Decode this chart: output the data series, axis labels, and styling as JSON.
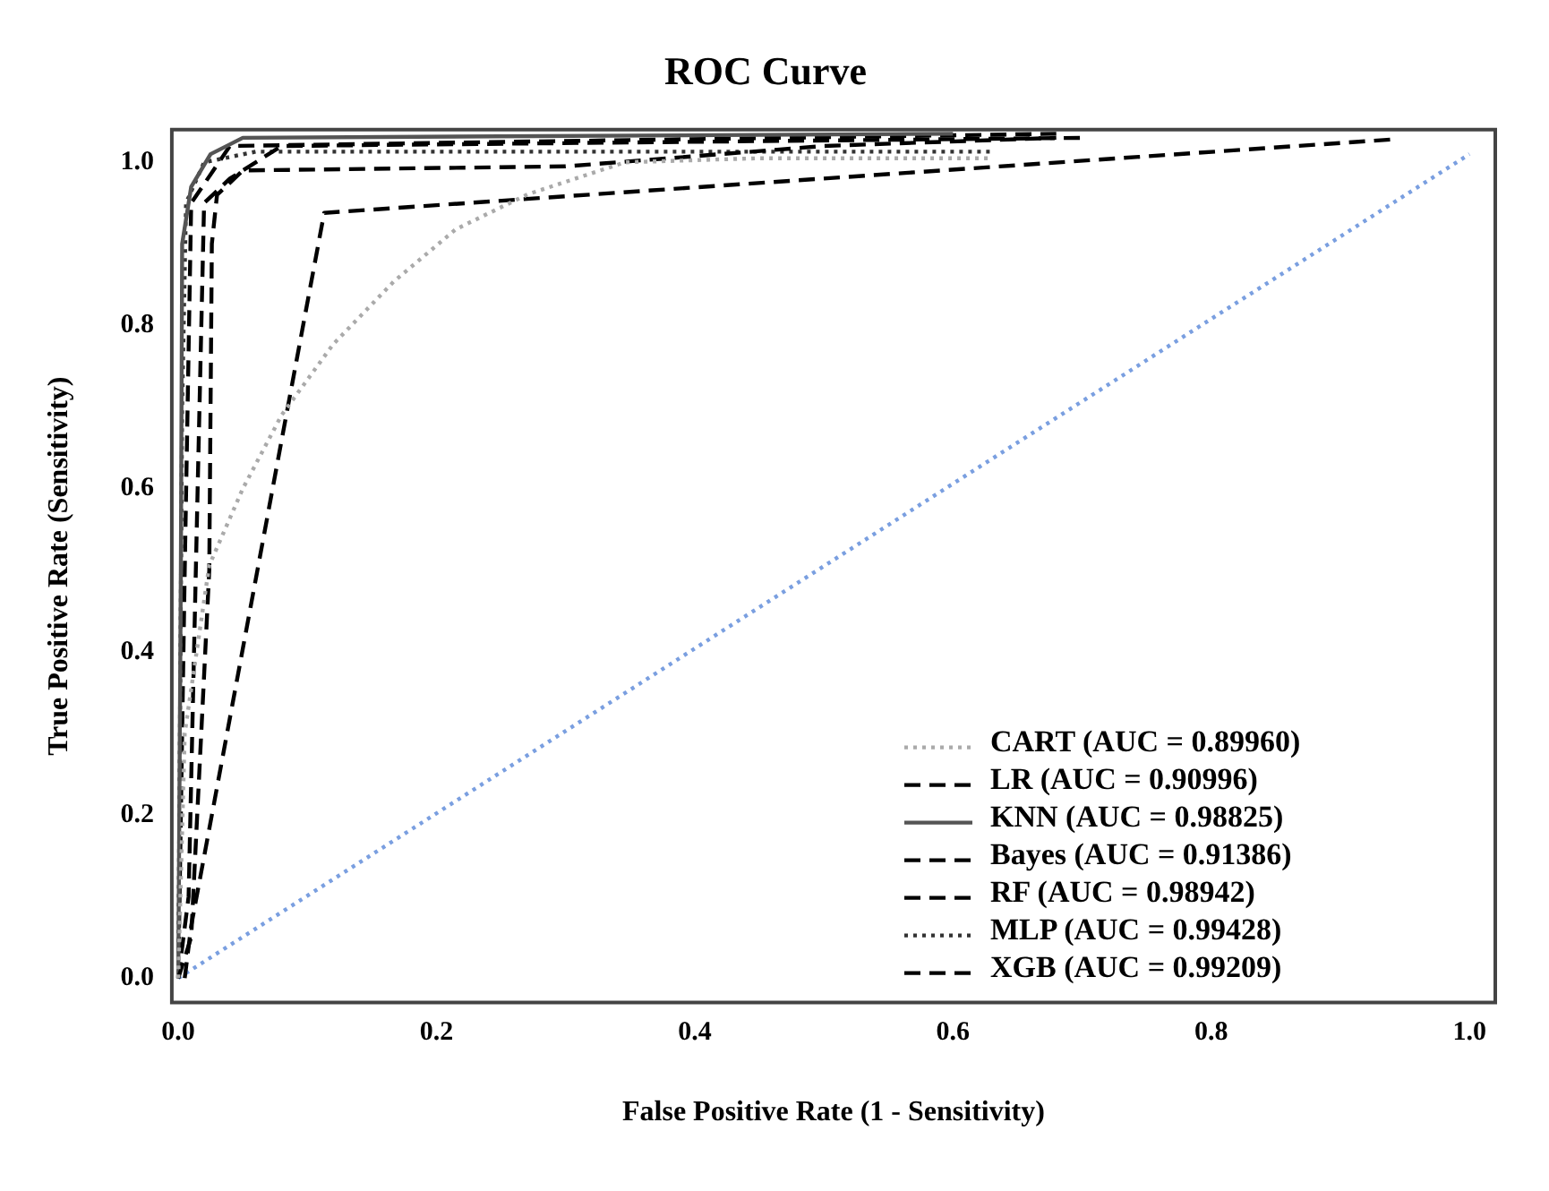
{
  "chart_data": {
    "type": "line",
    "title": "ROC Curve",
    "xlabel": "False Positive Rate (1 - Sensitivity)",
    "ylabel": "True Positive Rate (Sensitivity)",
    "xlim": [
      -0.005,
      1.02
    ],
    "ylim": [
      -0.03,
      1.04
    ],
    "xticks": [
      {
        "value": 0,
        "label": "0.0"
      },
      {
        "value": 0.2,
        "label": "0.2"
      },
      {
        "value": 0.4,
        "label": "0.4"
      },
      {
        "value": 0.6,
        "label": "0.6"
      },
      {
        "value": 0.8,
        "label": "0.8"
      },
      {
        "value": 1,
        "label": "1.0"
      }
    ],
    "yticks": [
      {
        "value": 0,
        "label": "0.0"
      },
      {
        "value": 0.2,
        "label": "0.2"
      },
      {
        "value": 0.4,
        "label": "0.4"
      },
      {
        "value": 0.6,
        "label": "0.6"
      },
      {
        "value": 0.8,
        "label": "0.8"
      },
      {
        "value": 1,
        "label": "1.0"
      }
    ],
    "grid": false,
    "legend": "bottom right",
    "marker": "none",
    "series": [
      {
        "name": "CART (AUC = 0.89960)",
        "color": "#aaaaaa",
        "line_style": "dotted",
        "x": [
          0,
          0.005,
          0.024,
          0.05,
          0.08,
          0.12,
          0.167,
          0.215,
          0.271,
          0.346,
          0.45,
          0.63
        ],
        "values": [
          0,
          0.3,
          0.506,
          0.6,
          0.69,
          0.777,
          0.854,
          0.918,
          0.961,
          1.0,
          1.005,
          1.005
        ]
      },
      {
        "name": "LR (AUC = 0.90996)",
        "color": "#000000",
        "line_style": "dashed",
        "x": [
          0,
          0.01,
          0.024,
          0.026,
          0.03,
          0.05,
          0.3,
          0.5,
          0.68
        ],
        "values": [
          0,
          0.05,
          0.5,
          0.9,
          0.96,
          0.99,
          0.995,
          1.02,
          1.03
        ]
      },
      {
        "name": "KNN (AUC = 0.98825)",
        "color": "#555555",
        "line_style": "solid",
        "x": [
          0,
          0.002,
          0.003,
          0.01,
          0.025,
          0.05,
          0.6
        ],
        "values": [
          0,
          0.5,
          0.9,
          0.97,
          1.01,
          1.03,
          1.035
        ]
      },
      {
        "name": "Bayes (AUC = 0.91386)",
        "color": "#000000",
        "line_style": "dashed",
        "x": [
          0.005,
          0.01,
          0.082,
          0.113,
          0.94
        ],
        "values": [
          0,
          0.064,
          0.676,
          0.938,
          1.028
        ]
      },
      {
        "name": "RF (AUC = 0.98942)",
        "color": "#000000",
        "line_style": "dashed",
        "x": [
          0,
          0.008,
          0.015,
          0.02,
          0.04,
          0.08,
          0.7
        ],
        "values": [
          0,
          0.1,
          0.6,
          0.95,
          0.98,
          1.02,
          1.03
        ]
      },
      {
        "name": "MLP (AUC = 0.99428)",
        "color": "#333333",
        "line_style": "dotted",
        "x": [
          0,
          0.003,
          0.006,
          0.02,
          0.06,
          0.63
        ],
        "values": [
          0,
          0.7,
          0.95,
          1.0,
          1.013,
          1.013
        ]
      },
      {
        "name": "XGB (AUC = 0.99209)",
        "color": "#000000",
        "line_style": "dashed",
        "x": [
          0,
          0.005,
          0.01,
          0.04,
          0.68
        ],
        "values": [
          0,
          0.5,
          0.95,
          1.02,
          1.035
        ]
      },
      {
        "color": "#7a9fe0",
        "line_style": "dotted",
        "x": [
          0,
          1
        ],
        "values": [
          0,
          1.01
        ]
      }
    ]
  }
}
